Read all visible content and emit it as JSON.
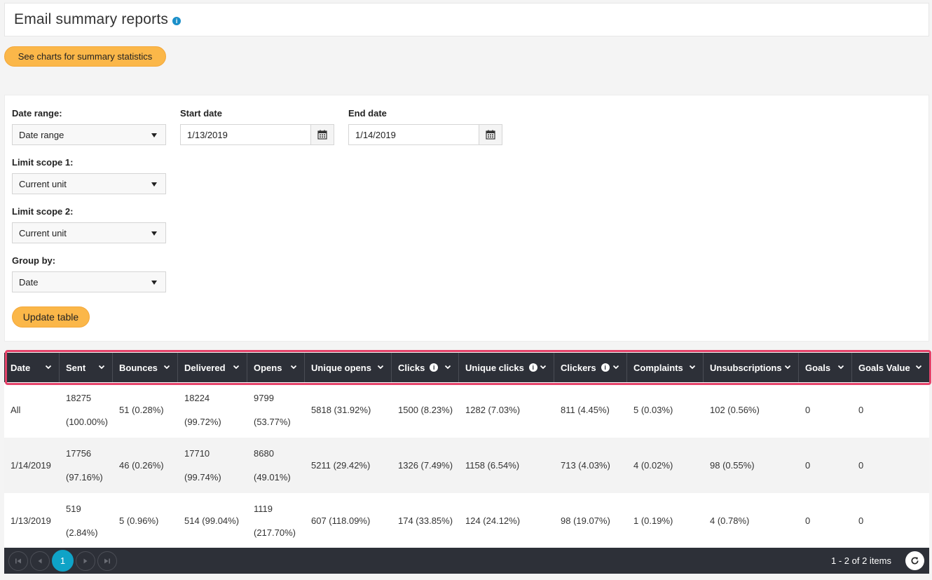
{
  "page": {
    "title": "Email summary reports",
    "charts_button": "See charts for summary statistics"
  },
  "filters": {
    "date_range_label": "Date range:",
    "date_range_value": "Date range",
    "start_date_label": "Start date",
    "start_date_value": "1/13/2019",
    "end_date_label": "End date",
    "end_date_value": "1/14/2019",
    "limit_scope_1_label": "Limit scope 1:",
    "limit_scope_1_value": "Current unit",
    "limit_scope_2_label": "Limit scope 2:",
    "limit_scope_2_value": "Current unit",
    "group_by_label": "Group by:",
    "group_by_value": "Date",
    "update_button": "Update table"
  },
  "table": {
    "columns": [
      "Date",
      "Sent",
      "Bounces",
      "Delivered",
      "Opens",
      "Unique opens",
      "Clicks",
      "Unique clicks",
      "Clickers",
      "Complaints",
      "Unsubscriptions",
      "Goals",
      "Goals Value"
    ],
    "rows": [
      {
        "date": "All",
        "sent": [
          "18275",
          "(100.00%)"
        ],
        "bounces": "51 (0.28%)",
        "delivered": [
          "18224",
          "(99.72%)"
        ],
        "opens": [
          "9799",
          "(53.77%)"
        ],
        "unique_opens": "5818 (31.92%)",
        "clicks": "1500 (8.23%)",
        "unique_clicks": "1282 (7.03%)",
        "clickers": "811 (4.45%)",
        "complaints": "5 (0.03%)",
        "unsubscriptions": "102 (0.56%)",
        "goals": "0",
        "goals_value": "0"
      },
      {
        "date": "1/14/2019",
        "sent": [
          "17756",
          "(97.16%)"
        ],
        "bounces": "46 (0.26%)",
        "delivered": [
          "17710",
          "(99.74%)"
        ],
        "opens": [
          "8680",
          "(49.01%)"
        ],
        "unique_opens": "5211 (29.42%)",
        "clicks": "1326 (7.49%)",
        "unique_clicks": "1158 (6.54%)",
        "clickers": "713 (4.03%)",
        "complaints": "4 (0.02%)",
        "unsubscriptions": "98 (0.55%)",
        "goals": "0",
        "goals_value": "0"
      },
      {
        "date": "1/13/2019",
        "sent": [
          "519",
          "(2.84%)"
        ],
        "bounces": "5 (0.96%)",
        "delivered": "514 (99.04%)",
        "opens": [
          "1119",
          "(217.70%)"
        ],
        "unique_opens": "607 (118.09%)",
        "clicks": "174 (33.85%)",
        "unique_clicks": "124 (24.12%)",
        "clickers": "98 (19.07%)",
        "complaints": "1 (0.19%)",
        "unsubscriptions": "4 (0.78%)",
        "goals": "0",
        "goals_value": "0"
      }
    ]
  },
  "pager": {
    "current_page": "1",
    "info": "1 - 2 of 2 items"
  },
  "colors": {
    "accent": "#fbb749",
    "header_bg": "#2d3038",
    "highlight": "#e5436a",
    "pager_active": "#0fa3c7"
  }
}
